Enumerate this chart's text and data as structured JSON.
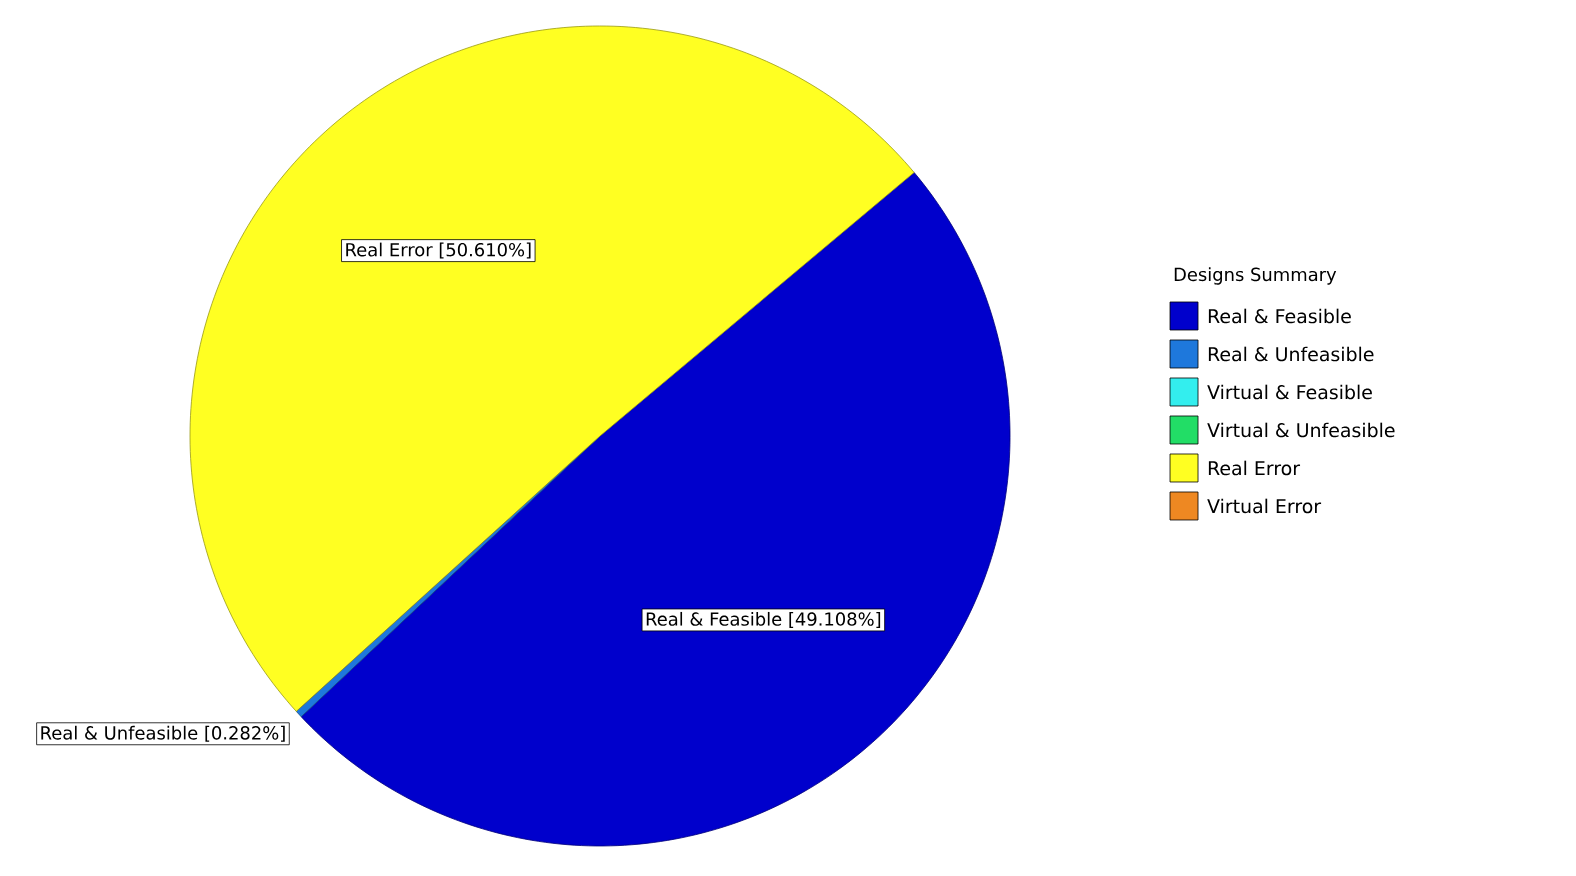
{
  "chart_data": {
    "type": "pie",
    "legend_title": "Designs Summary",
    "categories": [
      "Real & Feasible",
      "Real & Unfeasible",
      "Virtual & Feasible",
      "Virtual & Unfeasible",
      "Real Error",
      "Virtual Error"
    ],
    "values": [
      49.108,
      0.282,
      0,
      0,
      50.61,
      0
    ],
    "value_labels": [
      "Real & Feasible [49.108%]",
      "Real & Unfeasible [0.282%]",
      null,
      null,
      "Real Error [50.610%]",
      null
    ],
    "colors": [
      "#0000cc",
      "#1e78dc",
      "#33eeee",
      "#22dd66",
      "#ffff22",
      "#ee8822"
    ],
    "legend": "right"
  }
}
